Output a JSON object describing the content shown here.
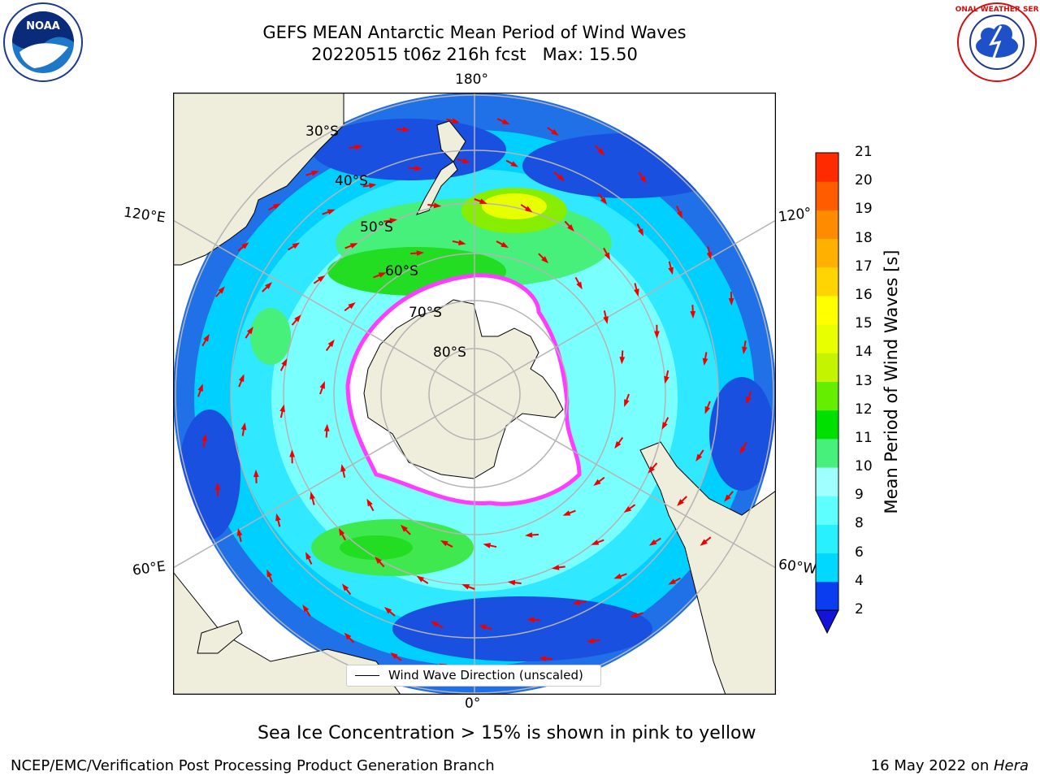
{
  "title": {
    "line1": "GEFS MEAN Antarctic Mean Period of Wind Waves",
    "line2": "20220515 t06z 216h fcst   Max: 15.50"
  },
  "map_labels": {
    "lon_top": "180°",
    "lon_bottom": "0°",
    "lon_left_top": "120°E",
    "lon_right_top": "120°",
    "lon_left_bottom": "60°E",
    "lon_right_bottom": "60°W",
    "lat": [
      "30°S",
      "40°S",
      "50°S",
      "60°S",
      "70°S",
      "80°S"
    ]
  },
  "legend": {
    "label": "Wind Wave Direction (unscaled)"
  },
  "colorbar": {
    "label": "Mean Period of Wind Waves [s]",
    "ticks": [
      "2",
      "4",
      "6",
      "8",
      "9",
      "10",
      "11",
      "12",
      "13",
      "14",
      "15",
      "16",
      "17",
      "18",
      "19",
      "20",
      "21"
    ],
    "colors": [
      "#0a3cf0",
      "#00d8ff",
      "#28f0ff",
      "#5effff",
      "#a0ffff",
      "#46f07a",
      "#00e000",
      "#66ee00",
      "#c4f400",
      "#e8ff00",
      "#ffff00",
      "#ffd400",
      "#ffb000",
      "#ff8c00",
      "#ff5c00",
      "#ff2a00",
      "#ff0000"
    ],
    "extend_color": "#1414d8"
  },
  "caption": "Sea Ice Concentration > 15% is shown in pink to yellow",
  "footer": {
    "left": "NCEP/EMC/Verification Post Processing Product Generation Branch",
    "date": "16 May 2022 on ",
    "machine": "Hera"
  },
  "logos": {
    "left": "NOAA",
    "right": "NATIONAL WEATHER SERVICE"
  },
  "colors": {
    "land": "#efeedc",
    "ice": "#ffffff",
    "ice_edge": "#ff3cff",
    "arrow": "#ee0000",
    "grid": "#b4b4b4"
  }
}
